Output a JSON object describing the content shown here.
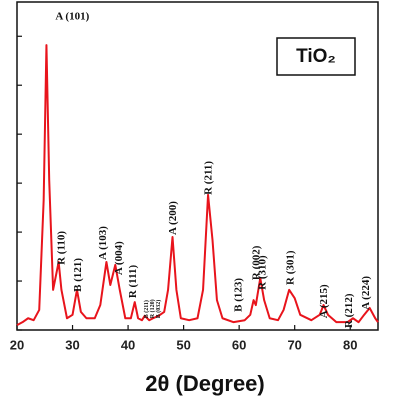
{
  "chart_data": {
    "type": "line",
    "x_label": "2θ (Degree)",
    "legend_label": "TiO₂",
    "color": "#e8141c",
    "xlim": [
      20,
      85
    ],
    "xticks": [
      20,
      30,
      40,
      50,
      60,
      70,
      80
    ],
    "ylim": [
      0,
      6.7
    ],
    "yticks": [
      0,
      1,
      2,
      3,
      4,
      5,
      6
    ],
    "x": [
      20,
      21,
      22,
      23,
      24,
      24.8,
      25.3,
      25.8,
      26.5,
      27.2,
      27.5,
      28,
      29,
      30,
      30.8,
      31.5,
      32.5,
      34,
      35,
      36.1,
      36.8,
      37.7,
      38.5,
      39.5,
      40.5,
      41.2,
      41.8,
      42.5,
      43,
      43.8,
      44.5,
      45.5,
      46.5,
      47.2,
      48,
      48.7,
      49.5,
      51,
      52.5,
      53.5,
      54.4,
      55.2,
      56,
      57,
      59,
      61,
      62,
      62.6,
      63,
      63.8,
      64.5,
      65.5,
      67,
      68,
      69,
      70,
      71,
      73,
      74.5,
      75.2,
      76,
      77.5,
      79.5,
      80.5,
      81.5,
      82.5,
      83.5,
      84.5,
      85
    ],
    "values": [
      0.1,
      0.16,
      0.24,
      0.2,
      0.41,
      2.65,
      5.82,
      3.06,
      0.82,
      1.22,
      1.39,
      0.82,
      0.24,
      0.31,
      0.82,
      0.37,
      0.24,
      0.24,
      0.51,
      1.39,
      0.92,
      1.33,
      0.82,
      0.24,
      0.24,
      0.57,
      0.24,
      0.2,
      0.29,
      0.2,
      0.24,
      0.29,
      0.37,
      0.82,
      1.9,
      0.82,
      0.24,
      0.2,
      0.24,
      0.82,
      2.76,
      1.84,
      0.61,
      0.24,
      0.16,
      0.2,
      0.31,
      0.61,
      0.51,
      1.06,
      0.61,
      0.24,
      0.2,
      0.41,
      0.82,
      0.65,
      0.31,
      0.2,
      0.31,
      0.51,
      0.31,
      0.16,
      0.16,
      0.24,
      0.16,
      0.31,
      0.45,
      0.24,
      0.16
    ],
    "annotations": [
      {
        "text": "A (101)",
        "x": 26.9,
        "y": 6.39,
        "rotated": false
      },
      {
        "text": "R (110)",
        "x": 28.14,
        "y": 1.33,
        "rotated": true
      },
      {
        "text": "B (121)",
        "x": 31.03,
        "y": 0.78,
        "rotated": true
      },
      {
        "text": "A (103)",
        "x": 35.55,
        "y": 1.43,
        "rotated": true
      },
      {
        "text": "A (004)",
        "x": 38.44,
        "y": 1.12,
        "rotated": true
      },
      {
        "text": "R (111)",
        "x": 40.98,
        "y": 0.65,
        "rotated": true
      },
      {
        "text": "B (211)",
        "x": 43.33,
        "y": 0.24,
        "rotated": true,
        "small": true
      },
      {
        "text": "R (120)",
        "x": 44.41,
        "y": 0.24,
        "rotated": true,
        "small": true
      },
      {
        "text": "B (032)",
        "x": 45.5,
        "y": 0.24,
        "rotated": true,
        "small": true
      },
      {
        "text": "A (200)",
        "x": 48.2,
        "y": 1.94,
        "rotated": true
      },
      {
        "text": "R (211)",
        "x": 54.54,
        "y": 2.76,
        "rotated": true
      },
      {
        "text": "B (123)",
        "x": 59.96,
        "y": 0.37,
        "rotated": true
      },
      {
        "text": "R (002)",
        "x": 63.22,
        "y": 1.02,
        "rotated": true
      },
      {
        "text": "R (310)",
        "x": 64.3,
        "y": 0.82,
        "rotated": true
      },
      {
        "text": "R (301)",
        "x": 69.37,
        "y": 0.92,
        "rotated": true
      },
      {
        "text": "A (215)",
        "x": 75.33,
        "y": 0.24,
        "rotated": true
      },
      {
        "text": "R (212)",
        "x": 79.86,
        "y": 0.04,
        "rotated": true
      },
      {
        "text": "A (224)",
        "x": 82.93,
        "y": 0.41,
        "rotated": true
      }
    ]
  }
}
